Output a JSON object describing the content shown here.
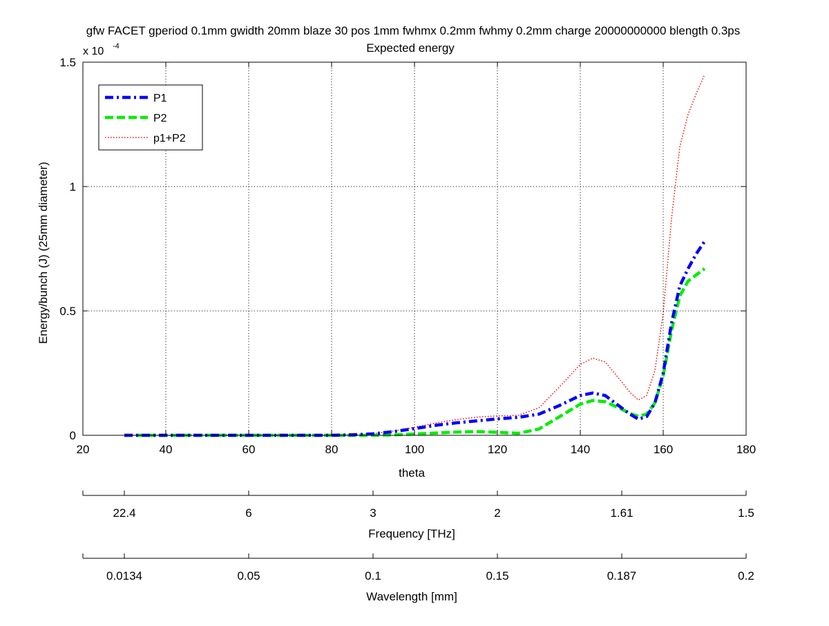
{
  "chart_data": {
    "type": "line",
    "title": "gfw FACET gperiod 0.1mm gwidth 20mm blaze 30 pos 1mm fwhmx 0.2mm fwhmy 0.2mm charge 20000000000 blength 0.3ps",
    "subtitle": "Expected energy",
    "xlabel": "theta",
    "ylabel": "Energy/bunch (J) (25mm diameter)",
    "y_exponent_label": "x 10",
    "y_exponent": "-4",
    "xlim": [
      20,
      180
    ],
    "ylim": [
      0,
      1.5
    ],
    "x_ticks": [
      20,
      40,
      60,
      80,
      100,
      120,
      140,
      160,
      180
    ],
    "y_ticks": [
      0,
      0.5,
      1,
      1.5
    ],
    "x_tick_labels": [
      "20",
      "40",
      "60",
      "80",
      "100",
      "120",
      "140",
      "160",
      "180"
    ],
    "y_tick_labels": [
      "0",
      "0.5",
      "1",
      "1.5"
    ],
    "grid": true,
    "legend_position": "top-left",
    "series": [
      {
        "name": "P1",
        "color": "#0000ff",
        "style": "dashdot",
        "x": [
          30,
          40,
          50,
          60,
          70,
          80,
          85,
          90,
          95,
          100,
          105,
          110,
          115,
          120,
          125,
          130,
          135,
          140,
          143,
          146,
          150,
          152,
          154,
          156,
          158,
          160,
          162,
          164,
          166,
          168,
          170
        ],
        "y": [
          0,
          0,
          0,
          0,
          0,
          0,
          0.002,
          0.006,
          0.015,
          0.027,
          0.04,
          0.05,
          0.058,
          0.066,
          0.072,
          0.085,
          0.12,
          0.16,
          0.17,
          0.16,
          0.11,
          0.085,
          0.065,
          0.075,
          0.13,
          0.25,
          0.45,
          0.6,
          0.67,
          0.73,
          0.78
        ]
      },
      {
        "name": "P2",
        "color": "#00ee00",
        "style": "dashed",
        "x": [
          30,
          40,
          50,
          60,
          70,
          80,
          85,
          90,
          95,
          100,
          105,
          110,
          115,
          120,
          125,
          130,
          135,
          140,
          143,
          146,
          150,
          152,
          154,
          156,
          158,
          160,
          162,
          164,
          166,
          168,
          170
        ],
        "y": [
          0,
          0,
          0,
          0,
          0,
          0,
          0,
          0,
          0.002,
          0.005,
          0.009,
          0.013,
          0.015,
          0.012,
          0.008,
          0.025,
          0.075,
          0.125,
          0.14,
          0.135,
          0.105,
          0.087,
          0.077,
          0.085,
          0.13,
          0.24,
          0.42,
          0.56,
          0.62,
          0.645,
          0.67
        ]
      },
      {
        "name": "p1+P2",
        "color": "#ff0000",
        "style": "dotted",
        "x": [
          30,
          40,
          50,
          60,
          70,
          80,
          85,
          90,
          95,
          100,
          105,
          110,
          115,
          120,
          125,
          130,
          135,
          140,
          143,
          146,
          150,
          152,
          154,
          156,
          158,
          160,
          162,
          164,
          166,
          168,
          170
        ],
        "y": [
          0,
          0,
          0,
          0,
          0,
          0,
          0.002,
          0.006,
          0.017,
          0.032,
          0.049,
          0.063,
          0.073,
          0.078,
          0.08,
          0.11,
          0.195,
          0.285,
          0.31,
          0.295,
          0.215,
          0.172,
          0.142,
          0.16,
          0.26,
          0.49,
          0.87,
          1.16,
          1.29,
          1.375,
          1.45
        ]
      }
    ],
    "secondary_axes": [
      {
        "label": "Frequency [THz]",
        "tick_theta": [
          30,
          60,
          90,
          120,
          150,
          180
        ],
        "tick_labels": [
          "22.4",
          "6",
          "3",
          "2",
          "1.61",
          "1.5"
        ]
      },
      {
        "label": "Wavelength [mm]",
        "tick_theta": [
          30,
          60,
          90,
          120,
          150,
          180
        ],
        "tick_labels": [
          "0.0134",
          "0.05",
          "0.1",
          "0.15",
          "0.187",
          "0.2"
        ]
      }
    ]
  }
}
